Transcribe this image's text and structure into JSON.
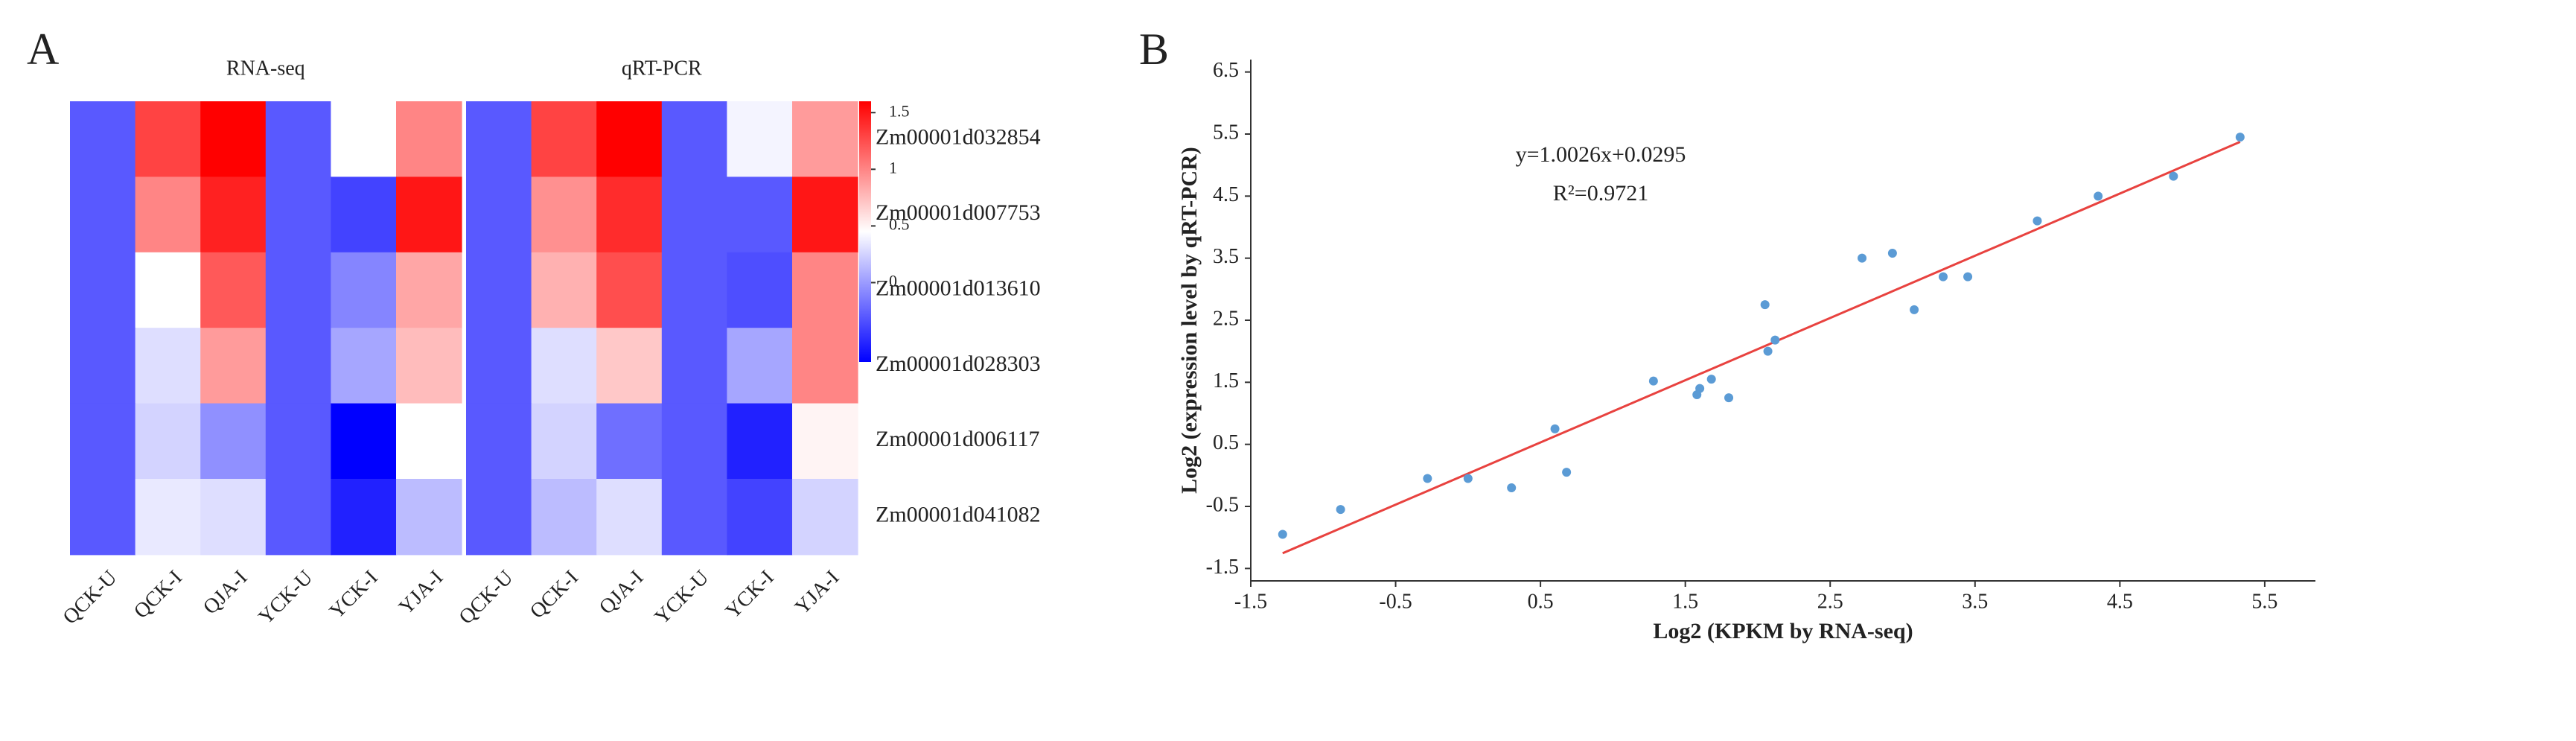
{
  "chart_data": [
    {
      "type": "heatmap",
      "panel_label": "A",
      "columns": [
        "QCK-U",
        "QCK-I",
        "QJA-I",
        "YCK-U",
        "YCK-I",
        "YJA-I"
      ],
      "rows": [
        "Zm00001d032854",
        "Zm00001d007753",
        "Zm00001d013610",
        "Zm00001d028303",
        "Zm00001d006117",
        "Zm00001d041082"
      ],
      "groups": [
        {
          "name": "RNA-seq",
          "values": [
            [
              -0.3,
              1.3,
              1.6,
              -0.3,
              0.45,
              1.0
            ],
            [
              -0.3,
              1.0,
              1.45,
              -0.3,
              -0.4,
              1.5
            ],
            [
              -0.3,
              0.45,
              1.2,
              -0.3,
              -0.1,
              0.85
            ],
            [
              -0.3,
              0.3,
              0.9,
              -0.3,
              0.05,
              0.75
            ],
            [
              -0.3,
              0.25,
              -0.05,
              -0.3,
              -0.7,
              0.45
            ],
            [
              -0.3,
              0.35,
              0.3,
              -0.3,
              -0.55,
              0.15
            ]
          ]
        },
        {
          "name": "qRT-PCR",
          "values": [
            [
              -0.3,
              1.3,
              1.6,
              -0.3,
              0.4,
              0.9
            ],
            [
              -0.3,
              0.95,
              1.4,
              -0.3,
              -0.3,
              1.5
            ],
            [
              -0.3,
              0.8,
              1.25,
              -0.3,
              -0.35,
              1.0
            ],
            [
              -0.3,
              0.3,
              0.7,
              -0.3,
              0.05,
              1.0
            ],
            [
              -0.3,
              0.25,
              -0.2,
              -0.3,
              -0.55,
              0.5
            ],
            [
              -0.3,
              0.15,
              0.3,
              -0.3,
              -0.4,
              0.25
            ]
          ]
        }
      ],
      "colormap": [
        "#0000ff",
        "#ffffff",
        "#ff0000"
      ],
      "zlim": [
        -0.7,
        1.6
      ],
      "zticks": [
        0,
        0.5,
        1,
        1.5
      ]
    },
    {
      "type": "scatter",
      "panel_label": "B",
      "x_label": "Log2 (KPKM by RNA-seq)",
      "y_label": "Log2 (expression level by  qRT-PCR)",
      "annotations": [
        "y=1.0026x+0.0295",
        "R²=0.9721"
      ],
      "x": [
        -1.28,
        -0.88,
        -0.28,
        0.0,
        0.3,
        0.6,
        0.68,
        1.28,
        1.58,
        1.6,
        1.68,
        1.8,
        2.05,
        2.07,
        2.12,
        2.72,
        2.93,
        3.08,
        3.28,
        3.45,
        3.93,
        4.35,
        4.87,
        5.33
      ],
      "values": [
        -0.95,
        -0.55,
        -0.05,
        -0.05,
        -0.2,
        0.75,
        0.05,
        1.52,
        1.3,
        1.4,
        1.55,
        1.25,
        2.75,
        2.0,
        2.18,
        3.5,
        3.58,
        2.67,
        3.2,
        3.2,
        4.1,
        4.5,
        4.82,
        5.45
      ],
      "color": "#5b9bd5",
      "fit": {
        "slope": 1.0026,
        "intercept": 0.0295,
        "color": "#e8423f"
      },
      "xlim": [
        -1.5,
        5.85
      ],
      "ylim": [
        -1.7,
        6.7
      ],
      "xticks": [
        -1.5,
        -0.5,
        0.5,
        1.5,
        2.5,
        3.5,
        4.5,
        5.5
      ],
      "yticks": [
        -1.5,
        -0.5,
        0.5,
        1.5,
        2.5,
        3.5,
        4.5,
        5.5,
        6.5
      ]
    }
  ]
}
